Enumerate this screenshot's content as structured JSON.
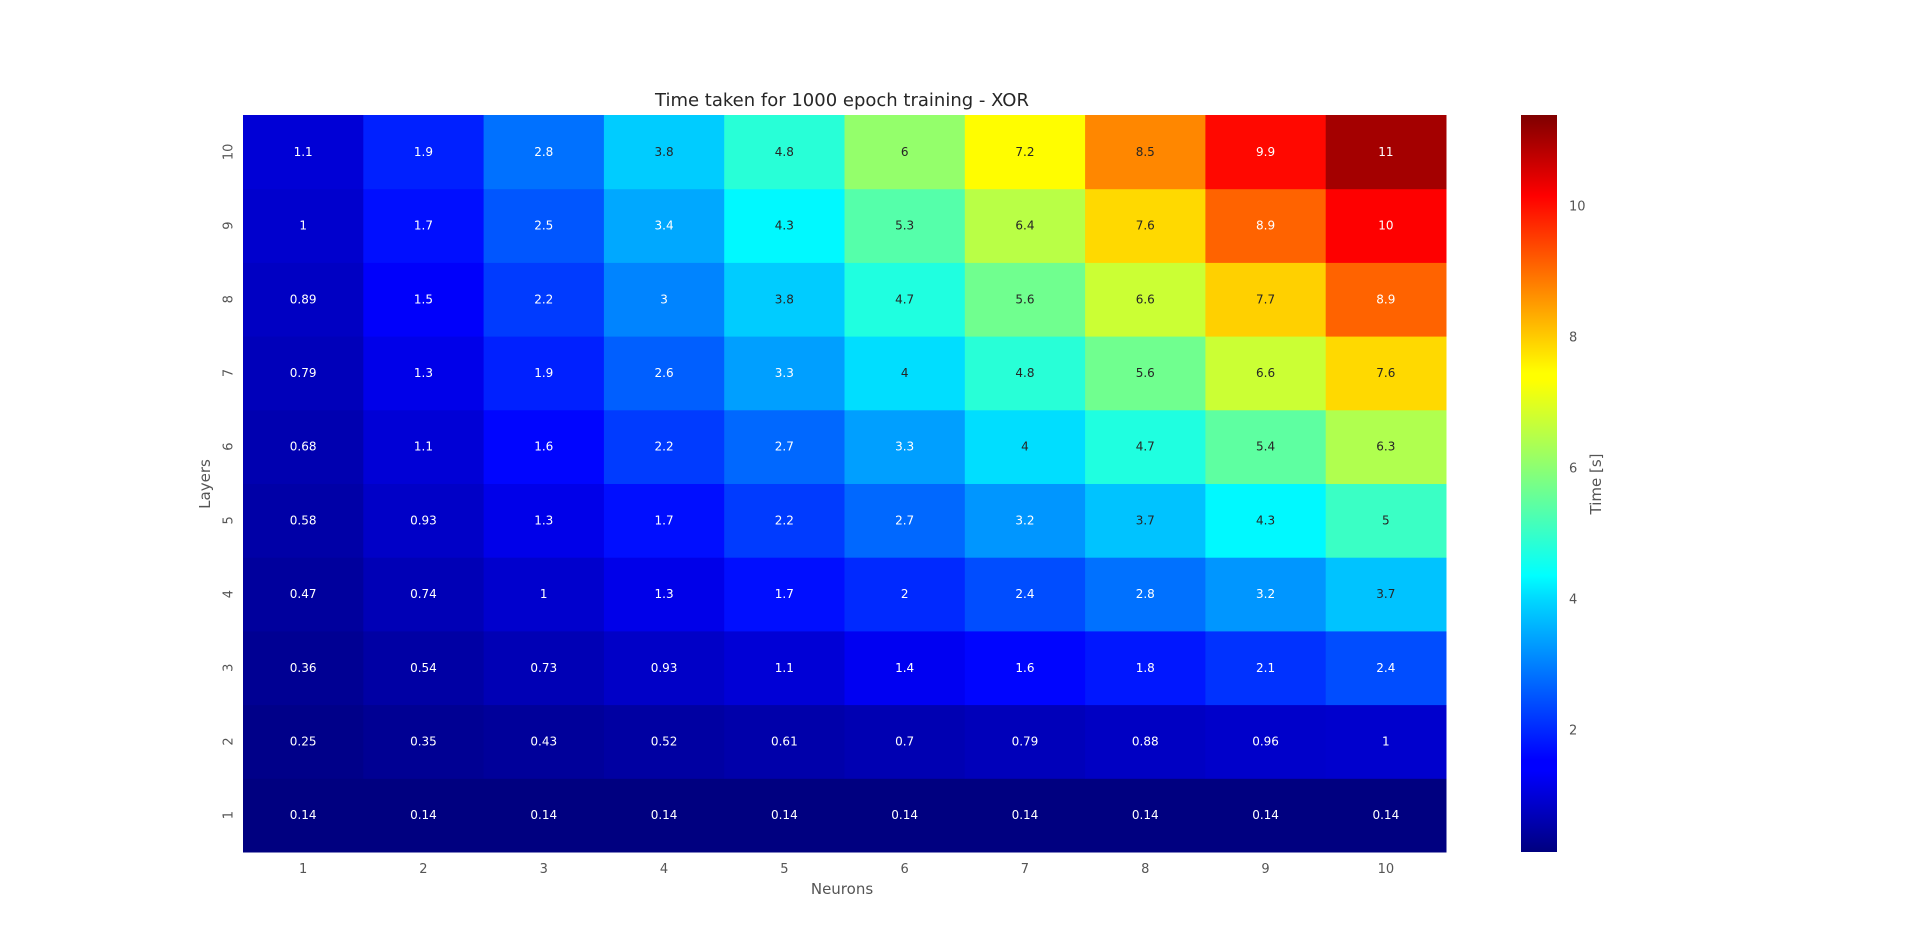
{
  "chart_data": {
    "type": "heatmap",
    "title": "Time taken for 1000 epoch training - XOR",
    "xlabel": "Neurons",
    "ylabel": "Layers",
    "x_categories": [
      "1",
      "2",
      "3",
      "4",
      "5",
      "6",
      "7",
      "8",
      "9",
      "10"
    ],
    "y_categories": [
      "1",
      "2",
      "3",
      "4",
      "5",
      "6",
      "7",
      "8",
      "9",
      "10"
    ],
    "values": [
      [
        0.14,
        0.14,
        0.14,
        0.14,
        0.14,
        0.14,
        0.14,
        0.14,
        0.14,
        0.14
      ],
      [
        0.25,
        0.35,
        0.43,
        0.52,
        0.61,
        0.7,
        0.79,
        0.88,
        0.96,
        1
      ],
      [
        0.36,
        0.54,
        0.73,
        0.93,
        1.1,
        1.4,
        1.6,
        1.8,
        2.1,
        2.4
      ],
      [
        0.47,
        0.74,
        1,
        1.3,
        1.7,
        2,
        2.4,
        2.8,
        3.2,
        3.7
      ],
      [
        0.58,
        0.93,
        1.3,
        1.7,
        2.2,
        2.7,
        3.2,
        3.7,
        4.3,
        5
      ],
      [
        0.68,
        1.1,
        1.6,
        2.2,
        2.7,
        3.3,
        4,
        4.7,
        5.4,
        6.3
      ],
      [
        0.79,
        1.3,
        1.9,
        2.6,
        3.3,
        4,
        4.8,
        5.6,
        6.6,
        7.6
      ],
      [
        0.89,
        1.5,
        2.2,
        3,
        3.8,
        4.7,
        5.6,
        6.6,
        7.7,
        8.9
      ],
      [
        1,
        1.7,
        2.5,
        3.4,
        4.3,
        5.3,
        6.4,
        7.6,
        8.9,
        10
      ],
      [
        1.1,
        1.9,
        2.8,
        3.8,
        4.8,
        6,
        7.2,
        8.5,
        9.9,
        11
      ]
    ],
    "colormap": "jet",
    "colorbar": {
      "label": "Time [s]",
      "range": [
        0.14,
        11.4
      ],
      "ticks": [
        2,
        4,
        6,
        8,
        10
      ]
    },
    "grid": false
  }
}
